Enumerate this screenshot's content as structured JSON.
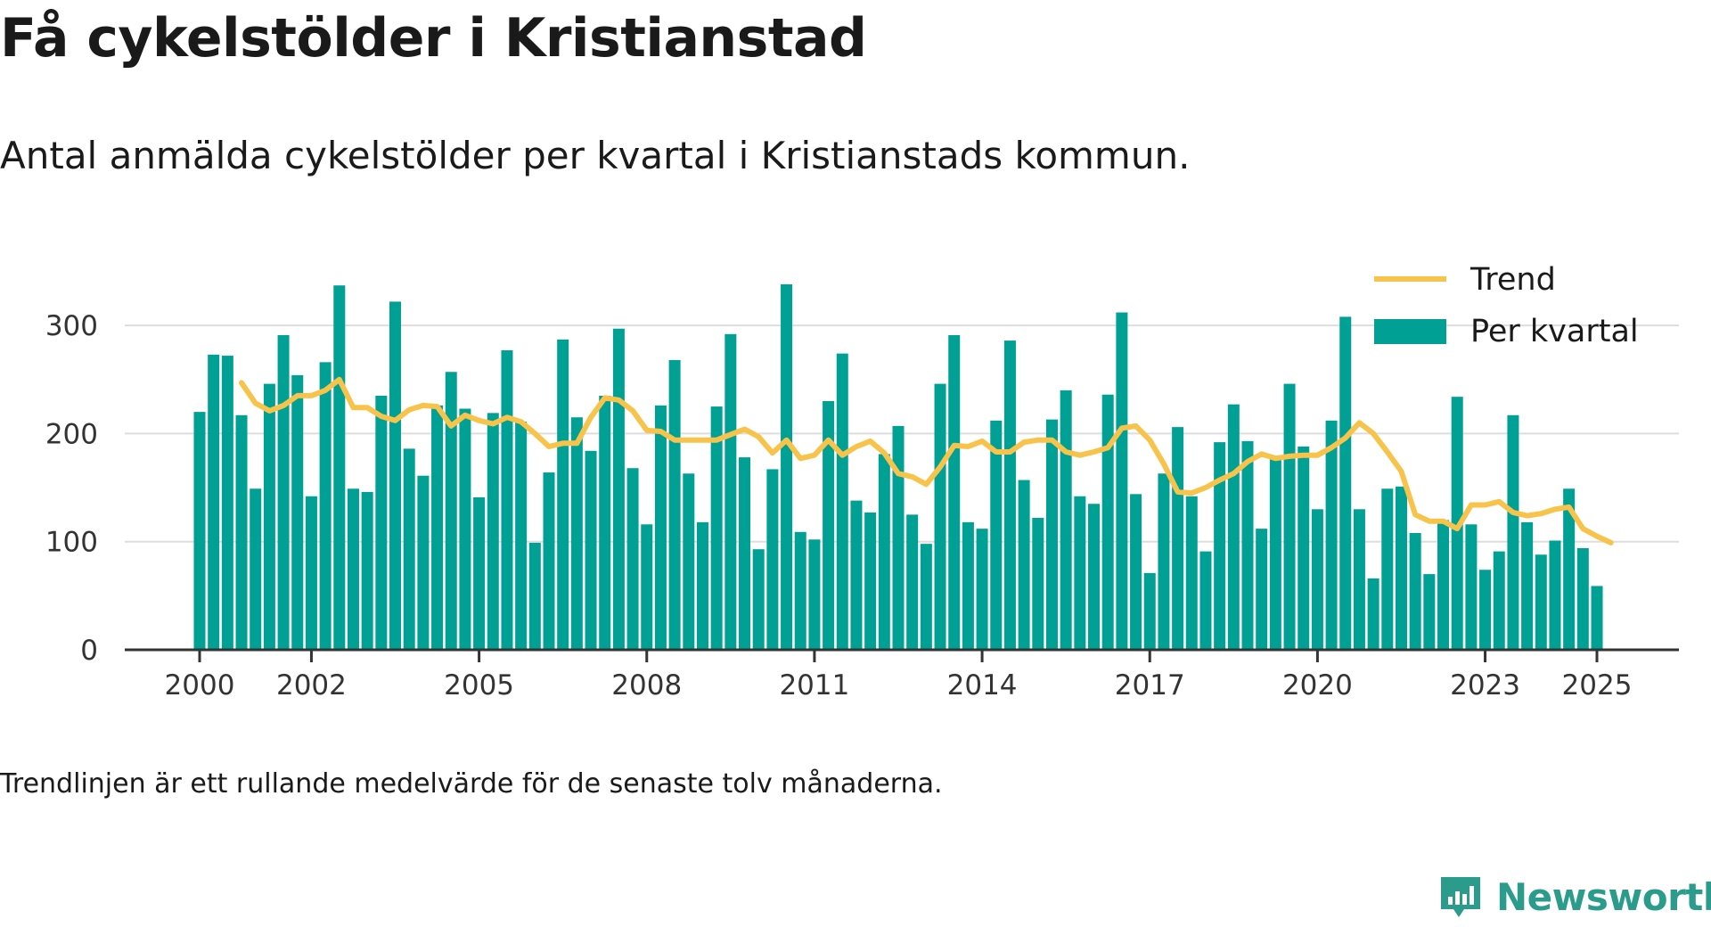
{
  "title": "Få cykelstölder i Kristianstad",
  "subtitle": "Antal anmälda cykelstölder per kvartal i Kristianstads kommun.",
  "footnote": "Trendlinjen är ett rullande medelvärde för de senaste tolv månaderna.",
  "brand": {
    "name": "Newsworthy",
    "icon": "newsworthy-logo-icon"
  },
  "colors": {
    "bar": "#00a095",
    "trend": "#f8c34a",
    "grid": "#dddddd",
    "axis": "#333333",
    "brand": "#2b9c8c"
  },
  "chart_data": {
    "type": "bar",
    "x_unit": "quarter",
    "x_start": "2000 Q1",
    "xticks": [
      "2000",
      "2002",
      "2005",
      "2008",
      "2011",
      "2014",
      "2017",
      "2020",
      "2023",
      "2025"
    ],
    "yticks": [
      "0",
      "100",
      "200",
      "300"
    ],
    "ylim": [
      0,
      345
    ],
    "grid": true,
    "legend_position": "top-right",
    "series": [
      {
        "name": "Per kvartal",
        "kind": "bar",
        "values": [
          220,
          273,
          272,
          217,
          149,
          246,
          291,
          254,
          142,
          266,
          337,
          149,
          146,
          235,
          322,
          186,
          161,
          226,
          257,
          223,
          141,
          219,
          277,
          211,
          99,
          164,
          287,
          215,
          184,
          235,
          297,
          168,
          116,
          226,
          268,
          163,
          118,
          225,
          292,
          178,
          93,
          167,
          338,
          109,
          102,
          230,
          274,
          138,
          127,
          181,
          207,
          125,
          98,
          246,
          291,
          118,
          112,
          212,
          286,
          157,
          122,
          213,
          240,
          142,
          135,
          236,
          312,
          144,
          71,
          163,
          206,
          142,
          91,
          192,
          227,
          193,
          112,
          176,
          246,
          188,
          130,
          212,
          308,
          130,
          66,
          149,
          151,
          108,
          70,
          120,
          234,
          116,
          74,
          91,
          217,
          118,
          88,
          101,
          149,
          94,
          59
        ]
      },
      {
        "name": "Trend",
        "kind": "line",
        "start_index": 3,
        "values": [
          247,
          228,
          221,
          226,
          235,
          235,
          240,
          250,
          224,
          224,
          216,
          212,
          222,
          226,
          225,
          207,
          217,
          212,
          209,
          215,
          211,
          200,
          188,
          191,
          191,
          215,
          233,
          231,
          221,
          203,
          202,
          194,
          194,
          194,
          194,
          199,
          204,
          197,
          182,
          194,
          177,
          180,
          194,
          180,
          188,
          193,
          182,
          163,
          160,
          153,
          169,
          189,
          188,
          193,
          183,
          183,
          192,
          194,
          194,
          183,
          180,
          183,
          187,
          205,
          207,
          194,
          172,
          146,
          145,
          150,
          157,
          163,
          174,
          181,
          177,
          179,
          180,
          180,
          187,
          196,
          210,
          200,
          183,
          165,
          125,
          119,
          119,
          112,
          134,
          134,
          137,
          127,
          124,
          126,
          130,
          132,
          112,
          105,
          99
        ]
      }
    ]
  }
}
